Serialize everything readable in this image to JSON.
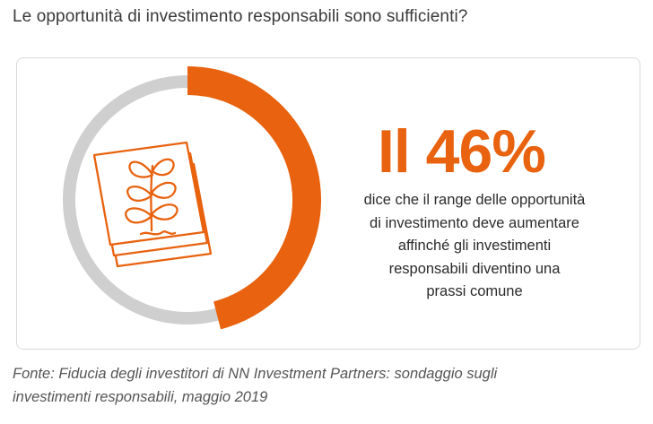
{
  "question": "Le opportunità di investimento responsabili sono sufficienti?",
  "chart_data": {
    "type": "pie",
    "variant": "donut",
    "values": [
      46,
      54
    ],
    "highlight_label": "Il 46%",
    "description_lines": [
      "dice che il range delle opportunità",
      "di investimento deve aumentare",
      "affinché gli investimenti",
      "responsabili diventino una",
      "prassi comune"
    ],
    "colors": {
      "highlight": "#e8620f",
      "rest": "#cfcfcf"
    }
  },
  "illustration": {
    "icon": "plant-documents-icon",
    "color": "#e8620f"
  },
  "source_lines": [
    "Fonte: Fiducia degli investitori di NN Investment Partners: sondaggio sugli",
    "investimenti responsabili, maggio 2019"
  ]
}
